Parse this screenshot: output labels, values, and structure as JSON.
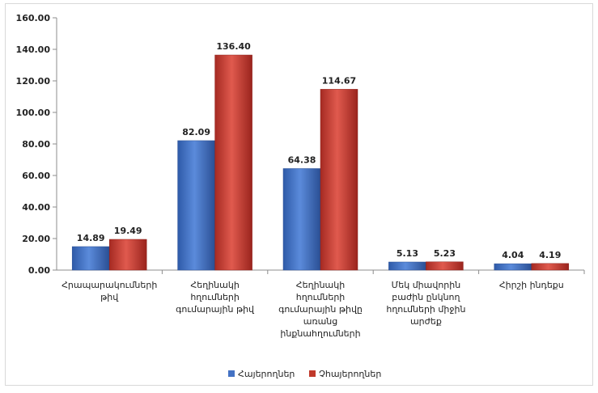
{
  "chart_data": {
    "type": "bar",
    "title": "",
    "xlabel": "",
    "ylabel": "",
    "ylim": [
      0,
      160
    ],
    "yticks": [
      "0.00",
      "20.00",
      "40.00",
      "60.00",
      "80.00",
      "100.00",
      "120.00",
      "140.00",
      "160.00"
    ],
    "grid": false,
    "legend_position": "bottom",
    "categories": [
      [
        "Հրապարակումների",
        "թիվ"
      ],
      [
        "Հեղինակի",
        "հղումների",
        "գումարային թիվ"
      ],
      [
        "Հեղինակի",
        "հղումների",
        "գումարային թիվը",
        "առանց",
        "ինքնահղումների"
      ],
      [
        "Մեկ միավորին",
        "բաժին ընկնող",
        "հղումների միջին",
        "արժեք"
      ],
      [
        "Հիրշի ինդեքս"
      ]
    ],
    "series": [
      {
        "name": "Հայերողներ",
        "color": "#4472C4",
        "values": [
          14.89,
          82.09,
          64.38,
          5.13,
          4.04
        ],
        "labels": [
          "14.89",
          "82.09",
          "64.38",
          "5.13",
          "4.04"
        ]
      },
      {
        "name": "Չհայերողներ",
        "color": "#C0392B",
        "values": [
          19.49,
          136.4,
          114.67,
          5.23,
          4.19
        ],
        "labels": [
          "19.49",
          "136.40",
          "114.67",
          "5.23",
          "4.19"
        ]
      }
    ]
  }
}
